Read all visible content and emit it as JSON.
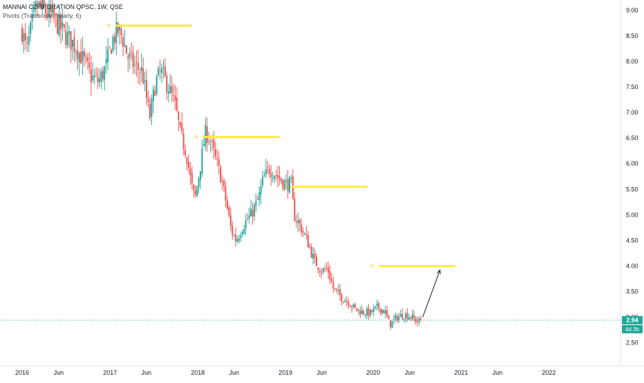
{
  "header": {
    "symbol_line": "MANNAI CORPORATION QPSC, 1W, QSE",
    "indicator_line": "Pivots (Traditional, Yearly, 6)"
  },
  "price_badge": {
    "value": "2.94",
    "countdown": "4d 3h"
  },
  "colors": {
    "up": "#26a69a",
    "down": "#ef5350",
    "pivot": "#ffeb3b",
    "pivot_label": "#f7c500",
    "last_line": "#26a69a",
    "axis_text": "#131722"
  },
  "chart_data": {
    "type": "candlestick",
    "title": "MANNAI CORPORATION QPSC, 1W, QSE",
    "y_axis": {
      "side": "right",
      "ticks": [
        "2.50",
        "3.00",
        "3.50",
        "4.00",
        "4.50",
        "5.00",
        "5.50",
        "6.00",
        "6.50",
        "7.00",
        "7.50",
        "8.00",
        "8.50",
        "9.00"
      ],
      "range": [
        2.05,
        9.2
      ]
    },
    "x_axis": {
      "range": [
        "2016-01-01",
        "2022-08-01"
      ],
      "ticks": [
        {
          "date": "2016-01-01",
          "label": "2016"
        },
        {
          "date": "2016-06-01",
          "label": "Jun"
        },
        {
          "date": "2017-01-01",
          "label": "2017"
        },
        {
          "date": "2017-06-01",
          "label": "Jun"
        },
        {
          "date": "2018-01-01",
          "label": "2018"
        },
        {
          "date": "2018-06-01",
          "label": "Jun"
        },
        {
          "date": "2019-01-01",
          "label": "2019"
        },
        {
          "date": "2019-06-01",
          "label": "Jun"
        },
        {
          "date": "2020-01-01",
          "label": "2020"
        },
        {
          "date": "2020-06-01",
          "label": "Jun"
        },
        {
          "date": "2021-01-01",
          "label": "2021"
        },
        {
          "date": "2021-06-01",
          "label": "Jun"
        },
        {
          "date": "2022-01-01",
          "label": "2022"
        }
      ]
    },
    "close_path": [
      [
        "2016-01-01",
        8.6
      ],
      [
        "2016-01-20",
        8.2
      ],
      [
        "2016-02-10",
        8.7
      ],
      [
        "2016-03-01",
        9.1
      ],
      [
        "2016-04-01",
        9.0
      ],
      [
        "2016-05-01",
        8.9
      ],
      [
        "2016-06-01",
        8.7
      ],
      [
        "2016-07-01",
        8.5
      ],
      [
        "2016-08-10",
        8.3
      ],
      [
        "2016-09-15",
        8.0
      ],
      [
        "2016-10-15",
        7.7
      ],
      [
        "2016-11-15",
        7.6
      ],
      [
        "2016-12-15",
        7.9
      ],
      [
        "2017-01-10",
        8.4
      ],
      [
        "2017-02-01",
        8.6
      ],
      [
        "2017-02-20",
        8.5
      ],
      [
        "2017-03-15",
        8.1
      ],
      [
        "2017-04-15",
        7.9
      ],
      [
        "2017-05-15",
        7.8
      ],
      [
        "2017-06-01",
        7.3
      ],
      [
        "2017-06-15",
        6.9
      ],
      [
        "2017-07-10",
        7.6
      ],
      [
        "2017-08-01",
        7.8
      ],
      [
        "2017-09-01",
        7.5
      ],
      [
        "2017-10-01",
        7.1
      ],
      [
        "2017-10-20",
        6.6
      ],
      [
        "2017-11-15",
        6.2
      ],
      [
        "2017-12-05",
        5.6
      ],
      [
        "2017-12-20",
        5.3
      ],
      [
        "2018-01-10",
        5.9
      ],
      [
        "2018-02-01",
        6.6
      ],
      [
        "2018-02-20",
        6.5
      ],
      [
        "2018-03-15",
        6.1
      ],
      [
        "2018-04-10",
        5.7
      ],
      [
        "2018-05-01",
        5.2
      ],
      [
        "2018-05-20",
        4.7
      ],
      [
        "2018-06-10",
        4.5
      ],
      [
        "2018-07-10",
        4.8
      ],
      [
        "2018-08-10",
        5.0
      ],
      [
        "2018-09-10",
        5.3
      ],
      [
        "2018-10-01",
        5.7
      ],
      [
        "2018-10-25",
        5.9
      ],
      [
        "2018-11-20",
        5.8
      ],
      [
        "2018-12-10",
        5.7
      ],
      [
        "2019-01-01",
        5.6
      ],
      [
        "2019-01-25",
        5.6
      ],
      [
        "2019-02-05",
        5.0
      ],
      [
        "2019-03-01",
        4.8
      ],
      [
        "2019-04-01",
        4.5
      ],
      [
        "2019-05-01",
        4.1
      ],
      [
        "2019-06-01",
        3.9
      ],
      [
        "2019-06-25",
        3.95
      ],
      [
        "2019-07-20",
        3.55
      ],
      [
        "2019-08-20",
        3.4
      ],
      [
        "2019-09-20",
        3.3
      ],
      [
        "2019-10-20",
        3.15
      ],
      [
        "2019-11-20",
        3.1
      ],
      [
        "2019-12-20",
        3.08
      ],
      [
        "2020-01-20",
        3.2
      ],
      [
        "2020-02-20",
        3.1
      ],
      [
        "2020-03-10",
        2.85
      ],
      [
        "2020-04-10",
        3.0
      ],
      [
        "2020-05-10",
        3.05
      ],
      [
        "2020-06-10",
        3.0
      ],
      [
        "2020-07-01",
        2.92
      ],
      [
        "2020-07-20",
        2.94
      ]
    ],
    "pivots": [
      {
        "label": "P",
        "start": "2017-01-01",
        "end": "2017-12-31",
        "value": 8.7
      },
      {
        "label": "P",
        "start": "2018-01-01",
        "end": "2018-12-31",
        "value": 6.52
      },
      {
        "label": "P",
        "start": "2019-01-01",
        "end": "2019-12-31",
        "value": 5.55
      },
      {
        "label": "P",
        "start": "2020-01-01",
        "end": "2020-12-31",
        "value": 4.0
      }
    ],
    "last_price": 2.94,
    "annotation_arrow": {
      "from": [
        "2020-07-25",
        3.0
      ],
      "to": [
        "2020-10-05",
        3.92
      ]
    }
  }
}
